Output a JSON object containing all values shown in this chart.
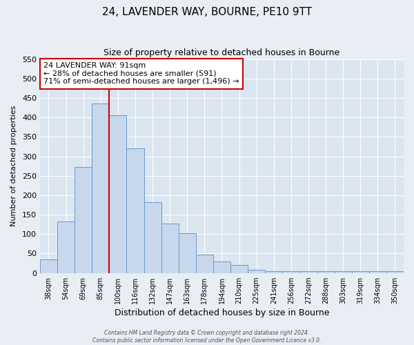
{
  "title": "24, LAVENDER WAY, BOURNE, PE10 9TT",
  "subtitle": "Size of property relative to detached houses in Bourne",
  "xlabel": "Distribution of detached houses by size in Bourne",
  "ylabel": "Number of detached properties",
  "bar_labels": [
    "38sqm",
    "54sqm",
    "69sqm",
    "85sqm",
    "100sqm",
    "116sqm",
    "132sqm",
    "147sqm",
    "163sqm",
    "178sqm",
    "194sqm",
    "210sqm",
    "225sqm",
    "241sqm",
    "256sqm",
    "272sqm",
    "288sqm",
    "303sqm",
    "319sqm",
    "334sqm",
    "350sqm"
  ],
  "bar_values": [
    35,
    133,
    273,
    435,
    405,
    320,
    183,
    127,
    103,
    47,
    30,
    20,
    8,
    5,
    5,
    5,
    5,
    5,
    5,
    5,
    5
  ],
  "bar_color": "#c8d8ec",
  "bar_edge_color": "#6699cc",
  "vline_color": "#cc0000",
  "annotation_line1": "24 LAVENDER WAY: 91sqm",
  "annotation_line2": "← 28% of detached houses are smaller (591)",
  "annotation_line3": "71% of semi-detached houses are larger (1,496) →",
  "annotation_box_facecolor": "#ffffff",
  "annotation_box_edgecolor": "#cc0000",
  "ylim": [
    0,
    550
  ],
  "yticks": [
    0,
    50,
    100,
    150,
    200,
    250,
    300,
    350,
    400,
    450,
    500,
    550
  ],
  "footer1": "Contains HM Land Registry data © Crown copyright and database right 2024.",
  "footer2": "Contains public sector information licensed under the Open Government Licence v3.0.",
  "bg_color": "#e8eef4",
  "plot_bg_color": "#dce6f0",
  "grid_color": "#ffffff",
  "title_fontsize": 11,
  "subtitle_fontsize": 9
}
